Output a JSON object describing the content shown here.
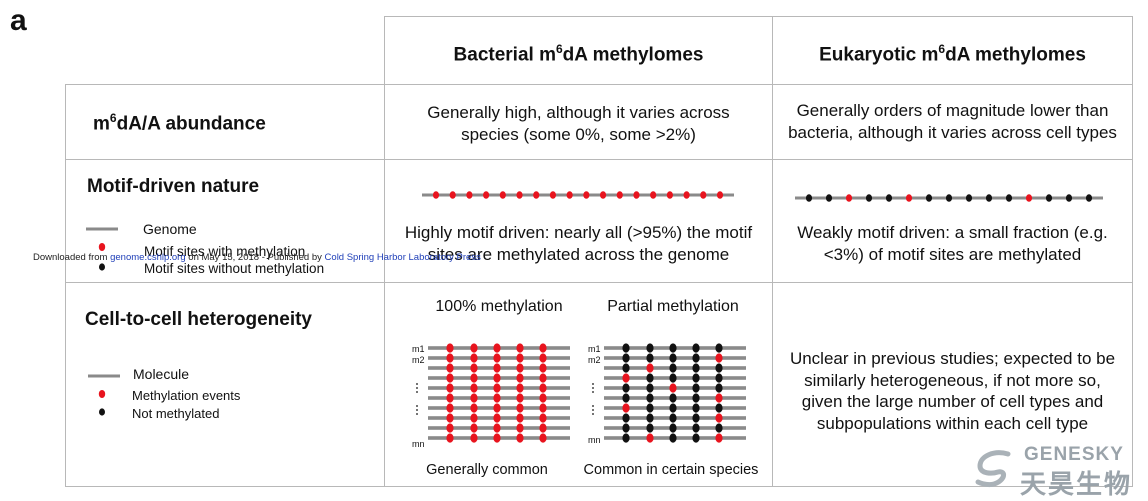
{
  "panel_label": "a",
  "columns": {
    "bacterial": {
      "pre": "Bacterial m",
      "sup": "6",
      "post": "dA methylomes"
    },
    "eukaryotic": {
      "pre": "Eukaryotic m",
      "sup": "6",
      "post": "dA methylomes"
    }
  },
  "rows": {
    "abundance": {
      "head": {
        "pre": "m",
        "sup": "6",
        "post": "dA/A abundance"
      },
      "bacterial": [
        "Generally high, although it varies across",
        "species (some 0%, some >2%)"
      ],
      "eukaryotic": [
        "Generally orders of magnitude lower than",
        "bacteria, although it varies across cell types"
      ]
    },
    "motif": {
      "head": "Motif-driven nature",
      "legend": {
        "genome": "Genome",
        "with": "Motif sites with methylation",
        "without": "Motif sites without methylation"
      },
      "bacterial": [
        "Highly motif driven: nearly all (>95%) the motif",
        "sites are methylated across the genome"
      ],
      "eukaryotic": [
        "Weakly motif driven: a small fraction (e.g.",
        "<3%) of motif sites are methylated"
      ]
    },
    "heterogeneity": {
      "head": "Cell-to-cell heterogeneity",
      "legend": {
        "molecule": "Molecule",
        "events": "Methylation events",
        "not": "Not methylated"
      },
      "full_title": "100% methylation",
      "partial_title": "Partial methylation",
      "full_caption": "Generally common",
      "partial_caption": "Common in certain species",
      "row_labels": [
        "m1",
        "m2",
        "mn"
      ],
      "eukaryotic": [
        "Unclear in previous studies; expected to be",
        "similarly heterogeneous, if not more so,",
        "given the large number of cell types and",
        "subpopulations within each cell type"
      ]
    }
  },
  "download_note": {
    "pre": "Downloaded from ",
    "link1": "genome.cshlp.org",
    "mid": " on May 15, 2018 - Published by ",
    "link2": "Cold Spring Harbor Laboratory Press"
  },
  "watermark": {
    "en": "GENESKY",
    "cn": "天昊生物"
  },
  "colors": {
    "methylated": "#e8141e",
    "unmethylated": "#111111",
    "line": "#8a8a8a",
    "border": "#b8b8b8"
  },
  "motif_tracks": {
    "bacterial": [
      "m",
      "m",
      "m",
      "m",
      "m",
      "m",
      "m",
      "m",
      "m",
      "m",
      "m",
      "m",
      "m",
      "m",
      "m",
      "m",
      "m",
      "m"
    ],
    "eukaryotic": [
      "u",
      "u",
      "m",
      "u",
      "u",
      "m",
      "u",
      "u",
      "u",
      "u",
      "u",
      "m",
      "u",
      "u",
      "u"
    ]
  },
  "heterogeneity_grid": {
    "rows": 10,
    "full": [
      "mmmmm",
      "mmmmm",
      "mmmmm",
      "mmmmm",
      "mmmmm",
      "mmmmm",
      "mmmmm",
      "mmmmm",
      "mmmmm",
      "mmmmm"
    ],
    "partial": [
      "uuuuu",
      "uuuum",
      "umuuu",
      "muuuu",
      "uumuu",
      "uuuum",
      "muuuu",
      "uuuum",
      "uuuuu",
      "umuum"
    ]
  }
}
